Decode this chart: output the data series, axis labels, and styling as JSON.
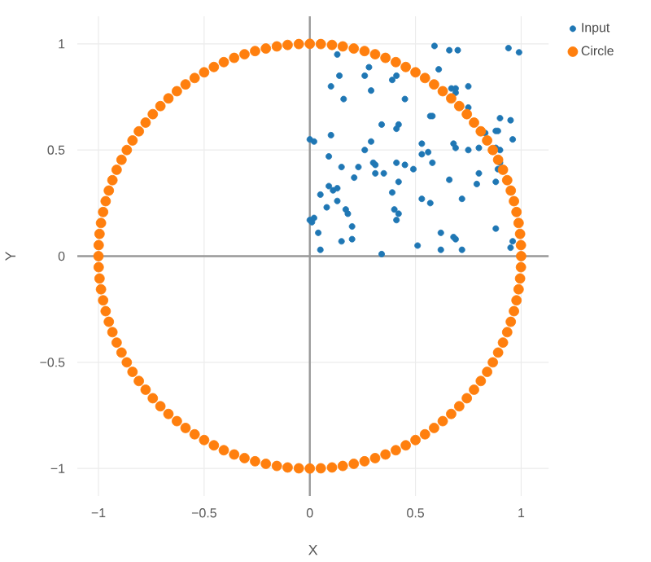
{
  "chart_data": {
    "type": "scatter",
    "xlabel": "X",
    "ylabel": "Y",
    "xlim": [
      -1.1,
      1.13
    ],
    "ylim": [
      -1.13,
      1.13
    ],
    "xticks": [
      {
        "value": -1,
        "label": "−1"
      },
      {
        "value": -0.5,
        "label": "−0.5"
      },
      0,
      0.5,
      1
    ],
    "yticks": [
      {
        "value": -1,
        "label": "−1"
      },
      {
        "value": -0.5,
        "label": "−0.5"
      },
      0,
      0.5,
      1
    ],
    "grid": true,
    "legend": "top right",
    "marker": "circle",
    "series": [
      {
        "name": "Input",
        "color": "#1f77b4",
        "x": [
          0.13,
          0.59,
          0.66,
          0.7,
          0.94,
          0.99,
          0.61,
          0.14,
          0.26,
          0.28,
          0.39,
          0.41,
          0.1,
          0.29,
          0.16,
          0.45,
          0.67,
          0.69,
          0.69,
          0.75,
          0.75,
          0.57,
          0.58,
          0.9,
          0.95,
          0.34,
          0.42,
          0.41,
          0.83,
          0.88,
          0.89,
          0.96,
          0.0,
          0.02,
          0.1,
          0.29,
          0.26,
          0.53,
          0.53,
          0.56,
          0.68,
          0.69,
          0.75,
          0.8,
          0.88,
          0.9,
          0.09,
          0.15,
          0.23,
          0.3,
          0.31,
          0.41,
          0.45,
          0.49,
          0.58,
          0.9,
          0.89,
          0.31,
          0.35,
          0.8,
          0.21,
          0.42,
          0.66,
          0.79,
          0.88,
          0.09,
          0.11,
          0.13,
          0.05,
          0.39,
          0.13,
          0.53,
          0.57,
          0.72,
          0.08,
          0.17,
          0.18,
          0.4,
          0.42,
          0.0,
          0.01,
          0.02,
          0.41,
          0.2,
          0.04,
          0.88,
          0.62,
          0.68,
          0.69,
          0.2,
          0.15,
          0.96,
          0.95,
          0.51,
          0.05,
          0.34,
          0.62,
          0.72
        ],
        "values": [
          0.95,
          0.99,
          0.97,
          0.97,
          0.98,
          0.96,
          0.88,
          0.85,
          0.85,
          0.89,
          0.83,
          0.85,
          0.8,
          0.78,
          0.74,
          0.74,
          0.79,
          0.79,
          0.77,
          0.8,
          0.7,
          0.66,
          0.66,
          0.65,
          0.64,
          0.62,
          0.62,
          0.6,
          0.58,
          0.59,
          0.59,
          0.55,
          0.55,
          0.54,
          0.57,
          0.54,
          0.5,
          0.53,
          0.48,
          0.49,
          0.53,
          0.51,
          0.5,
          0.51,
          0.51,
          0.5,
          0.47,
          0.42,
          0.42,
          0.44,
          0.43,
          0.44,
          0.43,
          0.41,
          0.44,
          0.44,
          0.41,
          0.39,
          0.39,
          0.39,
          0.37,
          0.35,
          0.36,
          0.34,
          0.35,
          0.33,
          0.31,
          0.32,
          0.29,
          0.3,
          0.26,
          0.27,
          0.25,
          0.27,
          0.23,
          0.22,
          0.2,
          0.22,
          0.2,
          0.17,
          0.16,
          0.18,
          0.17,
          0.14,
          0.11,
          0.13,
          0.11,
          0.09,
          0.08,
          0.08,
          0.07,
          0.07,
          0.04,
          0.05,
          0.03,
          0.01,
          0.03,
          0.03
        ]
      },
      {
        "name": "Circle",
        "color": "#ff7f0e",
        "x": [
          1,
          0.999,
          0.995,
          0.988,
          0.978,
          0.966,
          0.951,
          0.934,
          0.914,
          0.891,
          0.866,
          0.839,
          0.809,
          0.777,
          0.743,
          0.707,
          0.669,
          0.629,
          0.588,
          0.545,
          0.5,
          0.454,
          0.407,
          0.358,
          0.309,
          0.259,
          0.208,
          0.156,
          0.105,
          0.052,
          0,
          -0.052,
          -0.105,
          -0.156,
          -0.208,
          -0.259,
          -0.309,
          -0.358,
          -0.407,
          -0.454,
          -0.5,
          -0.545,
          -0.588,
          -0.629,
          -0.669,
          -0.707,
          -0.743,
          -0.777,
          -0.809,
          -0.839,
          -0.866,
          -0.891,
          -0.914,
          -0.934,
          -0.951,
          -0.966,
          -0.978,
          -0.988,
          -0.995,
          -0.999,
          -1,
          -0.999,
          -0.995,
          -0.988,
          -0.978,
          -0.966,
          -0.951,
          -0.934,
          -0.914,
          -0.891,
          -0.866,
          -0.839,
          -0.809,
          -0.777,
          -0.743,
          -0.707,
          -0.669,
          -0.629,
          -0.588,
          -0.545,
          -0.5,
          -0.454,
          -0.407,
          -0.358,
          -0.309,
          -0.259,
          -0.208,
          -0.156,
          -0.105,
          -0.052,
          0,
          0.052,
          0.105,
          0.156,
          0.208,
          0.259,
          0.309,
          0.358,
          0.407,
          0.454,
          0.5,
          0.545,
          0.588,
          0.629,
          0.669,
          0.707,
          0.743,
          0.777,
          0.809,
          0.839,
          0.866,
          0.891,
          0.914,
          0.934,
          0.951,
          0.966,
          0.978,
          0.988,
          0.995,
          0.999
        ],
        "values": [
          0,
          0.052,
          0.105,
          0.156,
          0.208,
          0.259,
          0.309,
          0.358,
          0.407,
          0.454,
          0.5,
          0.545,
          0.588,
          0.629,
          0.669,
          0.707,
          0.743,
          0.777,
          0.809,
          0.839,
          0.866,
          0.891,
          0.914,
          0.934,
          0.951,
          0.966,
          0.978,
          0.988,
          0.995,
          0.999,
          1,
          0.999,
          0.995,
          0.988,
          0.978,
          0.966,
          0.951,
          0.934,
          0.914,
          0.891,
          0.866,
          0.839,
          0.809,
          0.777,
          0.743,
          0.707,
          0.669,
          0.629,
          0.588,
          0.545,
          0.5,
          0.454,
          0.407,
          0.358,
          0.309,
          0.259,
          0.208,
          0.156,
          0.105,
          0.052,
          0,
          -0.052,
          -0.105,
          -0.156,
          -0.208,
          -0.259,
          -0.309,
          -0.358,
          -0.407,
          -0.454,
          -0.5,
          -0.545,
          -0.588,
          -0.629,
          -0.669,
          -0.707,
          -0.743,
          -0.777,
          -0.809,
          -0.839,
          -0.866,
          -0.891,
          -0.914,
          -0.934,
          -0.951,
          -0.966,
          -0.978,
          -0.988,
          -0.995,
          -0.999,
          -1,
          -0.999,
          -0.995,
          -0.988,
          -0.978,
          -0.966,
          -0.951,
          -0.934,
          -0.914,
          -0.891,
          -0.866,
          -0.839,
          -0.809,
          -0.777,
          -0.743,
          -0.707,
          -0.669,
          -0.629,
          -0.588,
          -0.545,
          -0.5,
          -0.454,
          -0.407,
          -0.358,
          -0.309,
          -0.259,
          -0.208,
          -0.156,
          -0.105,
          -0.052
        ]
      }
    ]
  }
}
